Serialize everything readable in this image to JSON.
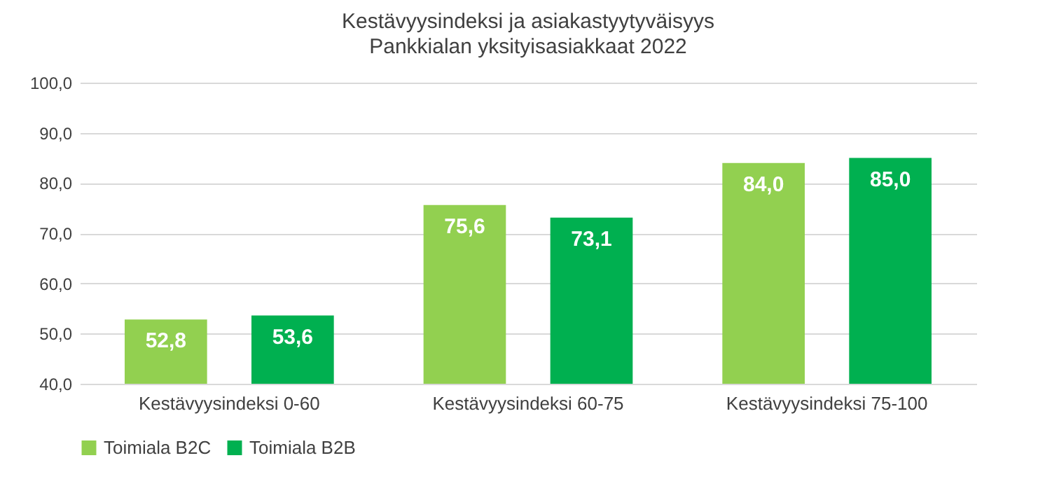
{
  "chart_data": {
    "type": "bar",
    "title": "Kestävyysindeksi ja asiakastyytyväisyys",
    "subtitle": "Pankkialan yksityisasiakkaat 2022",
    "categories": [
      "Kestävyysindeksi 0-60",
      "Kestävyysindeksi 60-75",
      "Kestävyysindeksi 75-100"
    ],
    "series": [
      {
        "name": "Toimiala B2C",
        "color": "#92d050",
        "values": [
          52.8,
          75.6,
          84.0
        ],
        "value_labels": [
          "52,8",
          "75,6",
          "84,0"
        ]
      },
      {
        "name": "Toimiala B2B",
        "color": "#00b050",
        "values": [
          53.6,
          73.1,
          85.0
        ],
        "value_labels": [
          "53,6",
          "73,1",
          "85,0"
        ]
      }
    ],
    "ylim": [
      40,
      100
    ],
    "yticks": [
      {
        "value": 40,
        "label": "40,0"
      },
      {
        "value": 50,
        "label": "50,0"
      },
      {
        "value": 60,
        "label": "60,0"
      },
      {
        "value": 70,
        "label": "70,0"
      },
      {
        "value": 80,
        "label": "80,0"
      },
      {
        "value": 90,
        "label": "90,0"
      },
      {
        "value": 100,
        "label": "100,0"
      }
    ],
    "grid": "y",
    "legend": "bottom"
  }
}
